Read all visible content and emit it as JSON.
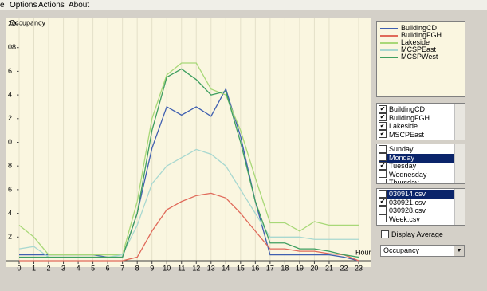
{
  "menu": [
    "e",
    "Options",
    "Actions",
    "About"
  ],
  "chart_data": {
    "type": "line",
    "title": "Occupancy",
    "x_label": "Hour",
    "x": [
      0,
      1,
      2,
      3,
      4,
      5,
      6,
      7,
      8,
      9,
      10,
      11,
      12,
      13,
      14,
      15,
      16,
      17,
      18,
      19,
      20,
      21,
      22,
      23
    ],
    "xlim": [
      0,
      23
    ],
    "xticks": [
      0,
      1,
      2,
      3,
      4,
      5,
      6,
      7,
      8,
      9,
      10,
      11,
      12,
      13,
      14,
      15,
      16,
      17,
      18,
      19,
      20,
      21,
      22,
      23
    ],
    "ylim": [
      0,
      20
    ],
    "yticks": [
      {
        "value": 2,
        "label": "2"
      },
      {
        "value": 4,
        "label": "4"
      },
      {
        "value": 6,
        "label": "6"
      },
      {
        "value": 8,
        "label": "8"
      },
      {
        "value": 10,
        "label": "0"
      },
      {
        "value": 12,
        "label": "2"
      },
      {
        "value": 14,
        "label": "4"
      },
      {
        "value": 16,
        "label": "6"
      },
      {
        "value": 18,
        "label": "08"
      },
      20
    ],
    "grid": true,
    "series": [
      {
        "name": "BuildingCD",
        "color": "#3f5fb0",
        "values": [
          0.5,
          0.5,
          0.5,
          0.5,
          0.5,
          0.5,
          0.3,
          0.3,
          4,
          9.5,
          13,
          12.3,
          13,
          12.2,
          14.5,
          10.5,
          5,
          0.5,
          0.5,
          0.5,
          0.5,
          0.5,
          0.3,
          0
        ]
      },
      {
        "name": "BuildingFGH",
        "color": "#e06a5a",
        "values": [
          0,
          0,
          0,
          0,
          0,
          0,
          0,
          0,
          0.3,
          2.5,
          4.3,
          5,
          5.5,
          5.7,
          5.3,
          4,
          2.5,
          1,
          1,
          0.8,
          0.8,
          0.6,
          0.5,
          0
        ]
      },
      {
        "name": "Lakeside",
        "color": "#a8d878",
        "values": [
          3,
          2,
          0.5,
          0.5,
          0.5,
          0.5,
          0.5,
          0.5,
          5,
          12,
          15.7,
          16.7,
          16.7,
          14.5,
          14,
          11,
          7,
          3.2,
          3.2,
          2.5,
          3.3,
          3,
          3,
          3
        ]
      },
      {
        "name": "MCSPEast",
        "color": "#a8d8d0",
        "values": [
          1,
          1.2,
          0.3,
          0.3,
          0.3,
          0.3,
          0.3,
          0.5,
          3,
          6.5,
          8,
          8.7,
          9.4,
          9,
          8,
          6,
          4,
          2,
          2,
          2,
          1.8,
          1.8,
          1.8,
          1.8
        ]
      },
      {
        "name": "MCSPWest",
        "color": "#3f9f60",
        "values": [
          0.3,
          0.3,
          0.3,
          0.3,
          0.3,
          0.3,
          0.3,
          0.3,
          4,
          11,
          15.5,
          16.2,
          15.3,
          14,
          14.3,
          10,
          5,
          1.5,
          1.5,
          1,
          1,
          0.8,
          0.5,
          0.3
        ]
      }
    ]
  },
  "buildings": [
    {
      "label": "BuildingCD",
      "checked": true
    },
    {
      "label": "BuildingFGH",
      "checked": true
    },
    {
      "label": "Lakeside",
      "checked": true
    },
    {
      "label": "MSCPEast",
      "checked": true
    }
  ],
  "days": [
    {
      "label": "Sunday",
      "checked": false
    },
    {
      "label": "Monday",
      "checked": false,
      "selected": true
    },
    {
      "label": "Tuesday",
      "checked": true
    },
    {
      "label": "Wednesday",
      "checked": false
    },
    {
      "label": "Thursday",
      "checked": false
    }
  ],
  "files": [
    {
      "label": "030914.csv",
      "checked": false,
      "selected": true
    },
    {
      "label": "030921.csv",
      "checked": true
    },
    {
      "label": "030928.csv",
      "checked": false
    },
    {
      "label": "Week.csv",
      "checked": false
    }
  ],
  "display_average": {
    "label": "Display Average",
    "checked": false
  },
  "measure": "Occupancy"
}
